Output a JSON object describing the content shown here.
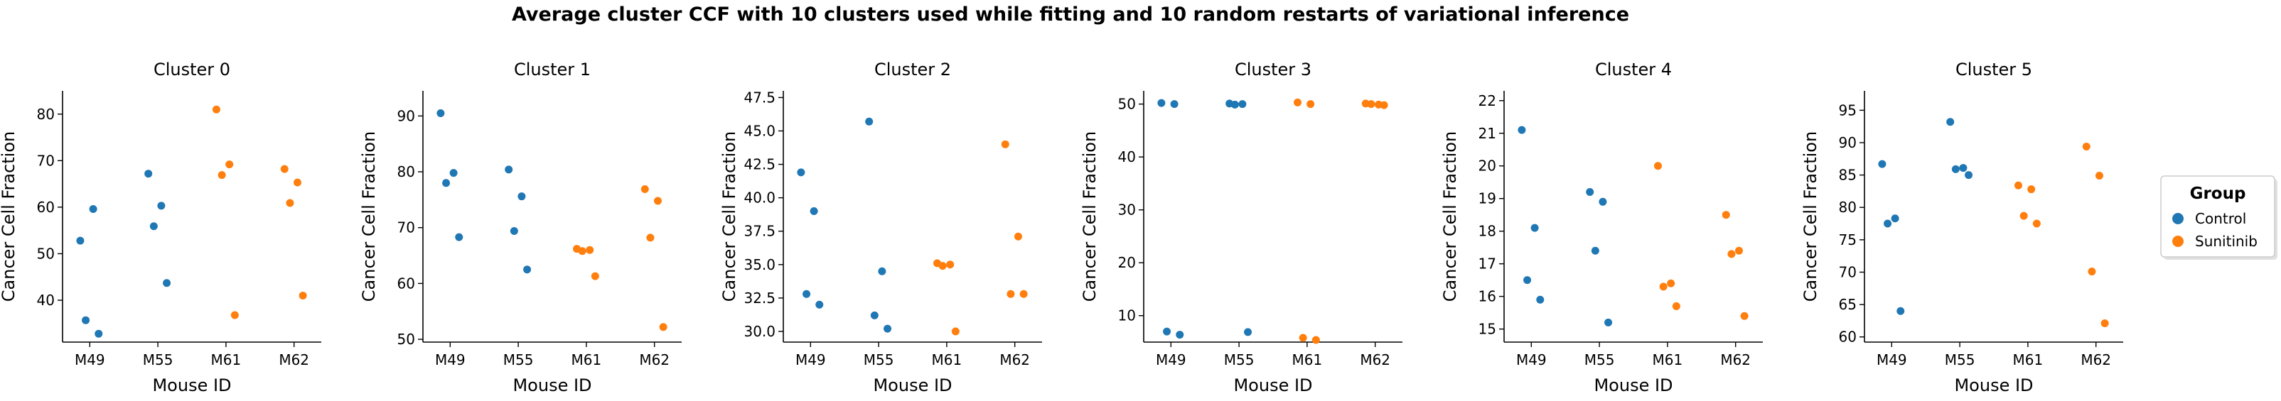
{
  "figure_title": "Average cluster CCF with 10 clusters used while fitting and 10 random restarts of variational inference",
  "colors": {
    "Control": "#1f77b4",
    "Sunitinib": "#ff7f0e"
  },
  "legend": {
    "title": "Group",
    "items": [
      {
        "label": "Control",
        "color": "#1f77b4"
      },
      {
        "label": "Sunitinib",
        "color": "#ff7f0e"
      }
    ]
  },
  "chart_data": [
    {
      "type": "scatter",
      "title": "Cluster 0",
      "xlabel": "Mouse ID",
      "ylabel": "Cancer Cell Fraction",
      "categories": [
        "M49",
        "M55",
        "M61",
        "M62"
      ],
      "ylim": [
        31,
        85
      ],
      "yticks": [
        40,
        50,
        60,
        70,
        80
      ],
      "points": [
        {
          "x": "M49",
          "y": 52.8,
          "group": "Control"
        },
        {
          "x": "M49",
          "y": 59.6,
          "group": "Control"
        },
        {
          "x": "M49",
          "y": 35.7,
          "group": "Control"
        },
        {
          "x": "M49",
          "y": 32.8,
          "group": "Control"
        },
        {
          "x": "M55",
          "y": 67.2,
          "group": "Control"
        },
        {
          "x": "M55",
          "y": 60.3,
          "group": "Control"
        },
        {
          "x": "M55",
          "y": 55.9,
          "group": "Control"
        },
        {
          "x": "M55",
          "y": 43.7,
          "group": "Control"
        },
        {
          "x": "M61",
          "y": 81.0,
          "group": "Sunitinib"
        },
        {
          "x": "M61",
          "y": 69.2,
          "group": "Sunitinib"
        },
        {
          "x": "M61",
          "y": 66.9,
          "group": "Sunitinib"
        },
        {
          "x": "M61",
          "y": 36.8,
          "group": "Sunitinib"
        },
        {
          "x": "M62",
          "y": 68.2,
          "group": "Sunitinib"
        },
        {
          "x": "M62",
          "y": 65.3,
          "group": "Sunitinib"
        },
        {
          "x": "M62",
          "y": 60.9,
          "group": "Sunitinib"
        },
        {
          "x": "M62",
          "y": 41.0,
          "group": "Sunitinib"
        }
      ]
    },
    {
      "type": "scatter",
      "title": "Cluster 1",
      "xlabel": "",
      "ylabel": "Cancer Cell Fraction",
      "categories": [
        "M49",
        "M55",
        "M61",
        "M62"
      ],
      "ylim": [
        49.5,
        94.5
      ],
      "yticks": [
        50,
        60,
        70,
        80,
        90
      ],
      "points": [
        {
          "x": "M49",
          "y": 90.5,
          "group": "Control"
        },
        {
          "x": "M49",
          "y": 79.8,
          "group": "Control"
        },
        {
          "x": "M49",
          "y": 78.0,
          "group": "Control"
        },
        {
          "x": "M49",
          "y": 68.3,
          "group": "Control"
        },
        {
          "x": "M55",
          "y": 80.4,
          "group": "Control"
        },
        {
          "x": "M55",
          "y": 75.6,
          "group": "Control"
        },
        {
          "x": "M55",
          "y": 69.4,
          "group": "Control"
        },
        {
          "x": "M55",
          "y": 62.5,
          "group": "Control"
        },
        {
          "x": "M61",
          "y": 66.2,
          "group": "Sunitinib"
        },
        {
          "x": "M61",
          "y": 66.0,
          "group": "Sunitinib"
        },
        {
          "x": "M61",
          "y": 65.8,
          "group": "Sunitinib"
        },
        {
          "x": "M61",
          "y": 61.3,
          "group": "Sunitinib"
        },
        {
          "x": "M62",
          "y": 76.9,
          "group": "Sunitinib"
        },
        {
          "x": "M62",
          "y": 74.8,
          "group": "Sunitinib"
        },
        {
          "x": "M62",
          "y": 68.2,
          "group": "Sunitinib"
        },
        {
          "x": "M62",
          "y": 52.2,
          "group": "Sunitinib"
        }
      ]
    },
    {
      "type": "scatter",
      "title": "Cluster 2",
      "xlabel": "",
      "ylabel": "Cancer Cell Fraction",
      "categories": [
        "M49",
        "M55",
        "M61",
        "M62"
      ],
      "ylim": [
        29.2,
        48.0
      ],
      "yticks": [
        30.0,
        32.5,
        35.0,
        37.5,
        40.0,
        42.5,
        45.0,
        47.5
      ],
      "yticklabels": [
        "30.0",
        "32.5",
        "35.0",
        "37.5",
        "40.0",
        "42.5",
        "45.0",
        "47.5"
      ],
      "points": [
        {
          "x": "M49",
          "y": 41.9,
          "group": "Control"
        },
        {
          "x": "M49",
          "y": 39.0,
          "group": "Control"
        },
        {
          "x": "M49",
          "y": 32.8,
          "group": "Control"
        },
        {
          "x": "M49",
          "y": 32.0,
          "group": "Control"
        },
        {
          "x": "M55",
          "y": 45.7,
          "group": "Control"
        },
        {
          "x": "M55",
          "y": 34.5,
          "group": "Control"
        },
        {
          "x": "M55",
          "y": 31.2,
          "group": "Control"
        },
        {
          "x": "M55",
          "y": 30.2,
          "group": "Control"
        },
        {
          "x": "M61",
          "y": 35.1,
          "group": "Sunitinib"
        },
        {
          "x": "M61",
          "y": 35.0,
          "group": "Sunitinib"
        },
        {
          "x": "M61",
          "y": 34.9,
          "group": "Sunitinib"
        },
        {
          "x": "M61",
          "y": 30.0,
          "group": "Sunitinib"
        },
        {
          "x": "M62",
          "y": 44.0,
          "group": "Sunitinib"
        },
        {
          "x": "M62",
          "y": 37.1,
          "group": "Sunitinib"
        },
        {
          "x": "M62",
          "y": 32.8,
          "group": "Sunitinib"
        },
        {
          "x": "M62",
          "y": 32.8,
          "group": "Sunitinib"
        }
      ]
    },
    {
      "type": "scatter",
      "title": "Cluster 3",
      "xlabel": "",
      "ylabel": "Cancer Cell Fraction",
      "categories": [
        "M49",
        "M55",
        "M61",
        "M62"
      ],
      "ylim": [
        5,
        52.5
      ],
      "yticks": [
        10,
        20,
        30,
        40,
        50
      ],
      "points": [
        {
          "x": "M49",
          "y": 50.2,
          "group": "Control"
        },
        {
          "x": "M49",
          "y": 50.0,
          "group": "Control"
        },
        {
          "x": "M49",
          "y": 7.0,
          "group": "Control"
        },
        {
          "x": "M49",
          "y": 6.4,
          "group": "Control"
        },
        {
          "x": "M55",
          "y": 50.1,
          "group": "Control"
        },
        {
          "x": "M55",
          "y": 50.0,
          "group": "Control"
        },
        {
          "x": "M55",
          "y": 49.9,
          "group": "Control"
        },
        {
          "x": "M55",
          "y": 6.9,
          "group": "Control"
        },
        {
          "x": "M61",
          "y": 50.3,
          "group": "Sunitinib"
        },
        {
          "x": "M61",
          "y": 50.0,
          "group": "Sunitinib"
        },
        {
          "x": "M61",
          "y": 5.8,
          "group": "Sunitinib"
        },
        {
          "x": "M61",
          "y": 5.4,
          "group": "Sunitinib"
        },
        {
          "x": "M62",
          "y": 50.1,
          "group": "Sunitinib"
        },
        {
          "x": "M62",
          "y": 49.9,
          "group": "Sunitinib"
        },
        {
          "x": "M62",
          "y": 50.0,
          "group": "Sunitinib"
        },
        {
          "x": "M62",
          "y": 49.8,
          "group": "Sunitinib"
        }
      ]
    },
    {
      "type": "scatter",
      "title": "Cluster 4",
      "xlabel": "",
      "ylabel": "Cancer Cell Fraction",
      "categories": [
        "M49",
        "M55",
        "M61",
        "M62"
      ],
      "ylim": [
        14.6,
        22.3
      ],
      "yticks": [
        15,
        16,
        17,
        18,
        19,
        20,
        21,
        22
      ],
      "points": [
        {
          "x": "M49",
          "y": 21.1,
          "group": "Control"
        },
        {
          "x": "M49",
          "y": 18.1,
          "group": "Control"
        },
        {
          "x": "M49",
          "y": 16.5,
          "group": "Control"
        },
        {
          "x": "M49",
          "y": 15.9,
          "group": "Control"
        },
        {
          "x": "M55",
          "y": 19.2,
          "group": "Control"
        },
        {
          "x": "M55",
          "y": 18.9,
          "group": "Control"
        },
        {
          "x": "M55",
          "y": 17.4,
          "group": "Control"
        },
        {
          "x": "M55",
          "y": 15.2,
          "group": "Control"
        },
        {
          "x": "M61",
          "y": 20.0,
          "group": "Sunitinib"
        },
        {
          "x": "M61",
          "y": 16.4,
          "group": "Sunitinib"
        },
        {
          "x": "M61",
          "y": 16.3,
          "group": "Sunitinib"
        },
        {
          "x": "M61",
          "y": 15.7,
          "group": "Sunitinib"
        },
        {
          "x": "M62",
          "y": 18.5,
          "group": "Sunitinib"
        },
        {
          "x": "M62",
          "y": 17.4,
          "group": "Sunitinib"
        },
        {
          "x": "M62",
          "y": 17.3,
          "group": "Sunitinib"
        },
        {
          "x": "M62",
          "y": 15.4,
          "group": "Sunitinib"
        }
      ]
    },
    {
      "type": "scatter",
      "title": "Cluster 5",
      "xlabel": "",
      "ylabel": "Cancer Cell Fraction",
      "categories": [
        "M49",
        "M55",
        "M61",
        "M62"
      ],
      "ylim": [
        59.2,
        98
      ],
      "yticks": [
        60,
        65,
        70,
        75,
        80,
        85,
        90,
        95
      ],
      "points": [
        {
          "x": "M49",
          "y": 86.7,
          "group": "Control"
        },
        {
          "x": "M49",
          "y": 78.3,
          "group": "Control"
        },
        {
          "x": "M49",
          "y": 77.5,
          "group": "Control"
        },
        {
          "x": "M49",
          "y": 64.0,
          "group": "Control"
        },
        {
          "x": "M55",
          "y": 93.2,
          "group": "Control"
        },
        {
          "x": "M55",
          "y": 86.1,
          "group": "Control"
        },
        {
          "x": "M55",
          "y": 85.9,
          "group": "Control"
        },
        {
          "x": "M55",
          "y": 85.0,
          "group": "Control"
        },
        {
          "x": "M61",
          "y": 83.4,
          "group": "Sunitinib"
        },
        {
          "x": "M61",
          "y": 82.8,
          "group": "Sunitinib"
        },
        {
          "x": "M61",
          "y": 78.7,
          "group": "Sunitinib"
        },
        {
          "x": "M61",
          "y": 77.5,
          "group": "Sunitinib"
        },
        {
          "x": "M62",
          "y": 89.4,
          "group": "Sunitinib"
        },
        {
          "x": "M62",
          "y": 84.9,
          "group": "Sunitinib"
        },
        {
          "x": "M62",
          "y": 70.1,
          "group": "Sunitinib"
        },
        {
          "x": "M62",
          "y": 62.1,
          "group": "Sunitinib"
        }
      ]
    }
  ]
}
